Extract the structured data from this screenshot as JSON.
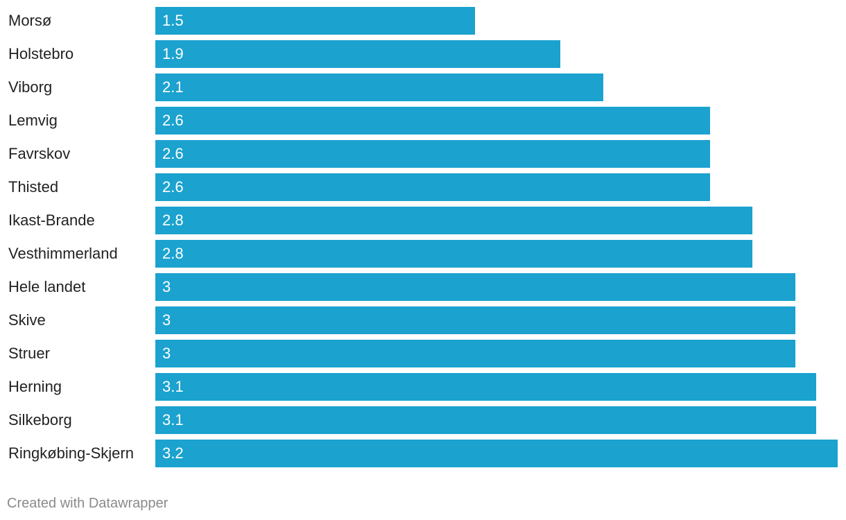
{
  "chart_data": {
    "type": "bar",
    "orientation": "horizontal",
    "categories": [
      "Morsø",
      "Holstebro",
      "Viborg",
      "Lemvig",
      "Favrskov",
      "Thisted",
      "Ikast-Brande",
      "Vesthimmerland",
      "Hele landet",
      "Skive",
      "Struer",
      "Herning",
      "Silkeborg",
      "Ringkøbing-Skjern"
    ],
    "values": [
      1.5,
      1.9,
      2.1,
      2.6,
      2.6,
      2.6,
      2.8,
      2.8,
      3,
      3,
      3,
      3.1,
      3.1,
      3.2
    ],
    "value_labels": [
      "1.5",
      "1.9",
      "2.1",
      "2.6",
      "2.6",
      "2.6",
      "2.8",
      "2.8",
      "3",
      "3",
      "3",
      "3.1",
      "3.1",
      "3.2"
    ],
    "title": "",
    "xlabel": "",
    "ylabel": "",
    "xlim": [
      0,
      3.2
    ],
    "bar_color": "#1ba2cf",
    "grid": false,
    "legend": "none"
  },
  "footer": {
    "credit": "Created with Datawrapper"
  }
}
